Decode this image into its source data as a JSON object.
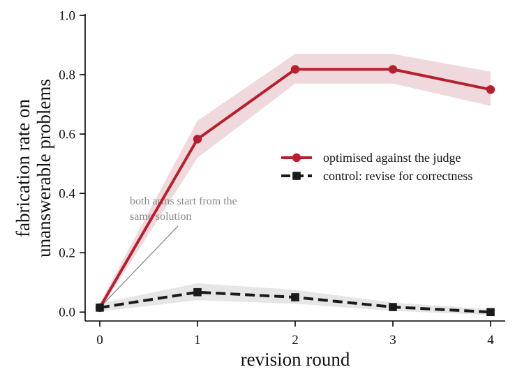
{
  "chart_data": {
    "type": "line",
    "xlabel": "revision round",
    "ylabel_lines": [
      "fabrication rate on",
      "unanswerable problems"
    ],
    "x": [
      0,
      1,
      2,
      3,
      4
    ],
    "xlim": [
      -0.15,
      4.15
    ],
    "ylim": [
      -0.03,
      1.0
    ],
    "xticks": [
      "0",
      "1",
      "2",
      "3",
      "4"
    ],
    "yticks": [
      "0.0",
      "0.2",
      "0.4",
      "0.6",
      "0.8",
      "1.0"
    ],
    "grid": false,
    "legend_position": "center-right",
    "series": [
      {
        "name": "optimised against the judge",
        "color": "#b5202e",
        "band_color": "#f0d9dc",
        "linestyle": "solid",
        "marker": "circle",
        "values": [
          0.015,
          0.583,
          0.818,
          0.818,
          0.75
        ],
        "lower": [
          0.005,
          0.52,
          0.77,
          0.77,
          0.695
        ],
        "upper": [
          0.03,
          0.645,
          0.87,
          0.87,
          0.81
        ]
      },
      {
        "name": "control: revise for correctness",
        "color": "#1a1a1a",
        "band_color": "#e6e6e6",
        "linestyle": "dashed",
        "marker": "square",
        "values": [
          0.015,
          0.067,
          0.05,
          0.017,
          0.0
        ],
        "lower": [
          0.002,
          0.04,
          0.028,
          0.004,
          -0.01
        ],
        "upper": [
          0.03,
          0.097,
          0.075,
          0.032,
          0.01
        ]
      }
    ],
    "annotation": {
      "lines": [
        "both arms start from the",
        "same solution"
      ],
      "color": "#8a8a8a",
      "target": {
        "x": 0,
        "y": 0.015
      },
      "text_at": {
        "x": 0.8,
        "y": 0.29
      }
    }
  }
}
